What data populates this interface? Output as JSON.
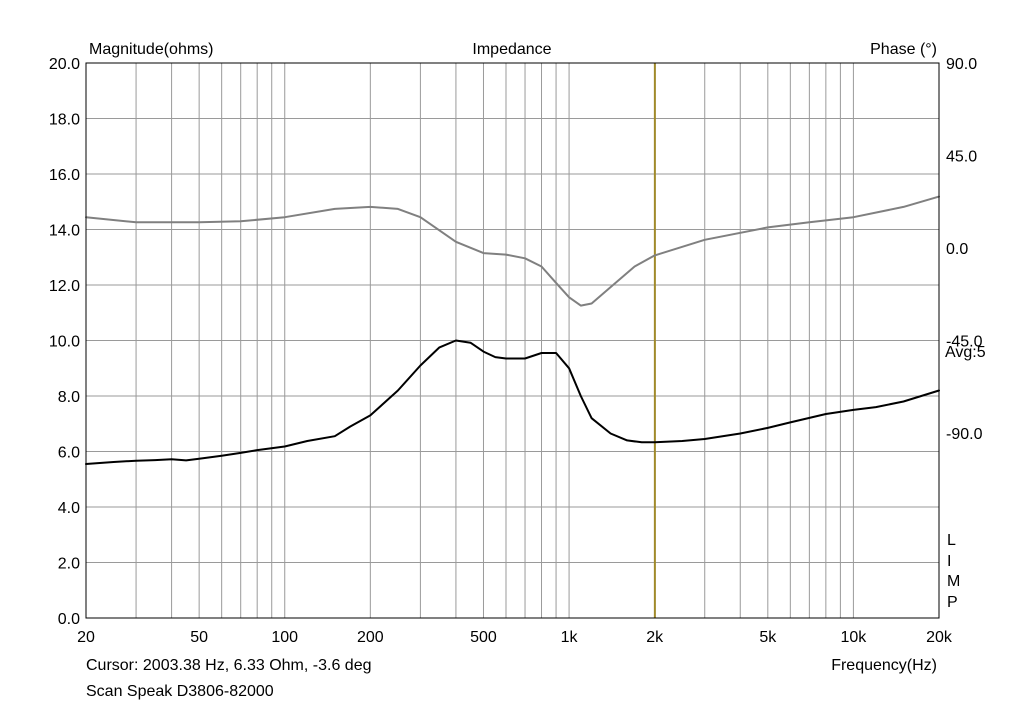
{
  "chart_data": {
    "type": "line",
    "title": "Impedance",
    "ylabel_left": "Magnitude(ohms)",
    "ylabel_right": "Phase (°)",
    "xlabel": "Frequency(Hz)",
    "x_scale": "log",
    "xlim": [
      20,
      20000
    ],
    "ylim_left": [
      0,
      20
    ],
    "ylim_right": [
      -180,
      90
    ],
    "x_ticks": [
      {
        "value": 20,
        "label": "20"
      },
      {
        "value": 50,
        "label": "50"
      },
      {
        "value": 100,
        "label": "100"
      },
      {
        "value": 200,
        "label": "200"
      },
      {
        "value": 500,
        "label": "500"
      },
      {
        "value": 1000,
        "label": "1k"
      },
      {
        "value": 2000,
        "label": "2k"
      },
      {
        "value": 5000,
        "label": "5k"
      },
      {
        "value": 10000,
        "label": "10k"
      },
      {
        "value": 20000,
        "label": "20k"
      }
    ],
    "y_ticks_left": [
      "0.0",
      "2.0",
      "4.0",
      "6.0",
      "8.0",
      "10.0",
      "12.0",
      "14.0",
      "16.0",
      "18.0",
      "20.0"
    ],
    "y_ticks_right": [
      {
        "value": 90,
        "label": "90.0"
      },
      {
        "value": 45,
        "label": "45.0"
      },
      {
        "value": 0,
        "label": "0.0"
      },
      {
        "value": -45,
        "label": "-45.0"
      },
      {
        "value": -90,
        "label": "-90.0"
      }
    ],
    "grid": true,
    "cursor": {
      "x": 2003.38,
      "color": "#a08a2a"
    },
    "cursor_text": "Cursor: 2003.38 Hz, 6.33 Ohm, -3.6 deg",
    "avg_text": "Avg:5",
    "side_letters": [
      "L",
      "I",
      "M",
      "P"
    ],
    "footer": "Scan Speak D3806-82000",
    "series": [
      {
        "role": "magnitude",
        "axis": "left",
        "color": "#000000",
        "x": [
          20,
          25,
          30,
          35,
          40,
          45,
          50,
          60,
          70,
          80,
          100,
          120,
          150,
          170,
          200,
          250,
          300,
          350,
          400,
          450,
          500,
          550,
          600,
          700,
          800,
          900,
          1000,
          1100,
          1200,
          1400,
          1600,
          1800,
          2000,
          2500,
          3000,
          4000,
          5000,
          6000,
          8000,
          10000,
          12000,
          15000,
          20000
        ],
        "y": [
          5.55,
          5.62,
          5.67,
          5.69,
          5.72,
          5.68,
          5.74,
          5.85,
          5.95,
          6.05,
          6.18,
          6.38,
          6.55,
          6.9,
          7.3,
          8.2,
          9.1,
          9.75,
          10.0,
          9.92,
          9.6,
          9.4,
          9.35,
          9.35,
          9.55,
          9.55,
          9.0,
          8.0,
          7.2,
          6.65,
          6.4,
          6.33,
          6.33,
          6.38,
          6.45,
          6.65,
          6.85,
          7.05,
          7.35,
          7.5,
          7.6,
          7.8,
          8.2
        ]
      },
      {
        "role": "phase",
        "axis": "right",
        "color": "#808080",
        "x": [
          20,
          30,
          50,
          70,
          100,
          150,
          200,
          250,
          300,
          400,
          500,
          600,
          700,
          800,
          900,
          1000,
          1100,
          1200,
          1400,
          1700,
          2000,
          3000,
          5000,
          7000,
          10000,
          15000,
          20000
        ],
        "y": [
          15,
          12.5,
          12.5,
          13,
          15,
          19,
          20,
          19,
          15,
          3,
          -2.5,
          -3.2,
          -5,
          -9,
          -17,
          -24,
          -28,
          -27,
          -19,
          -9,
          -3.6,
          4,
          10,
          12.5,
          15,
          20,
          25
        ]
      }
    ]
  }
}
